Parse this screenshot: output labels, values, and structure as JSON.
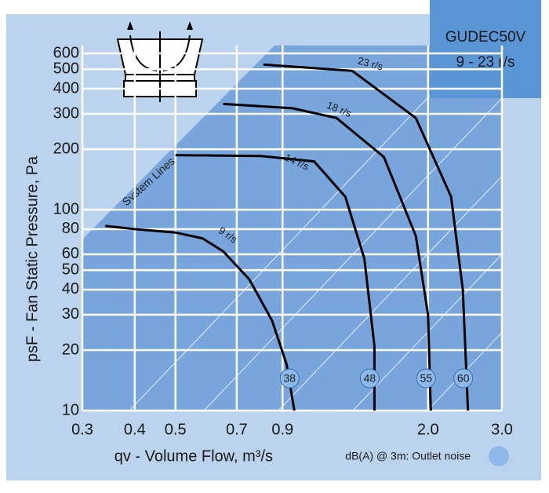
{
  "chart_data": {
    "type": "line",
    "title": "GUDEC50V",
    "subtitle": "9 - 23 r/s",
    "x_label": "qv - Volume Flow, m³/s",
    "y_label": "psF - Fan Static Pressure, Pa",
    "annotation": "System Lines",
    "legend_text": "dB(A) @ 3m: Outlet noise",
    "log_x": true,
    "log_y": true,
    "grid": true,
    "xlim": [
      0.3,
      3.0
    ],
    "ylim": [
      10,
      600
    ],
    "xticks": [
      0.3,
      0.4,
      0.5,
      0.7,
      0.9,
      {
        "value": 2,
        "label": "2.0"
      },
      {
        "value": 3,
        "label": "3.0"
      }
    ],
    "yticks": [
      10,
      20,
      30,
      40,
      50,
      60,
      80,
      100,
      200,
      300,
      400,
      500,
      600
    ],
    "series": [
      {
        "name": "9 r/s",
        "color": "#000000",
        "noise_db": 38,
        "x": [
          0.34,
          0.4,
          0.5,
          0.58,
          0.65,
          0.75,
          0.85,
          0.92,
          0.96
        ],
        "values": [
          83,
          80,
          77,
          72,
          62,
          45,
          28,
          17,
          10
        ]
      },
      {
        "name": "14 r/s",
        "color": "#000000",
        "noise_db": 48,
        "x": [
          0.5,
          0.8,
          1.07,
          1.27,
          1.41,
          1.49,
          1.49
        ],
        "values": [
          187,
          185,
          174,
          116,
          57,
          21,
          10
        ]
      },
      {
        "name": "18 r/s",
        "color": "#000000",
        "noise_db": 55,
        "x": [
          0.65,
          0.95,
          1.21,
          1.57,
          1.87,
          2.0,
          2.03
        ],
        "values": [
          336,
          320,
          286,
          183,
          74,
          30,
          10
        ]
      },
      {
        "name": "23 r/s",
        "color": "#000000",
        "noise_db": 60,
        "x": [
          0.81,
          1.32,
          1.87,
          2.27,
          2.42,
          2.49
        ],
        "values": [
          528,
          491,
          286,
          116,
          40,
          10
        ]
      }
    ]
  }
}
